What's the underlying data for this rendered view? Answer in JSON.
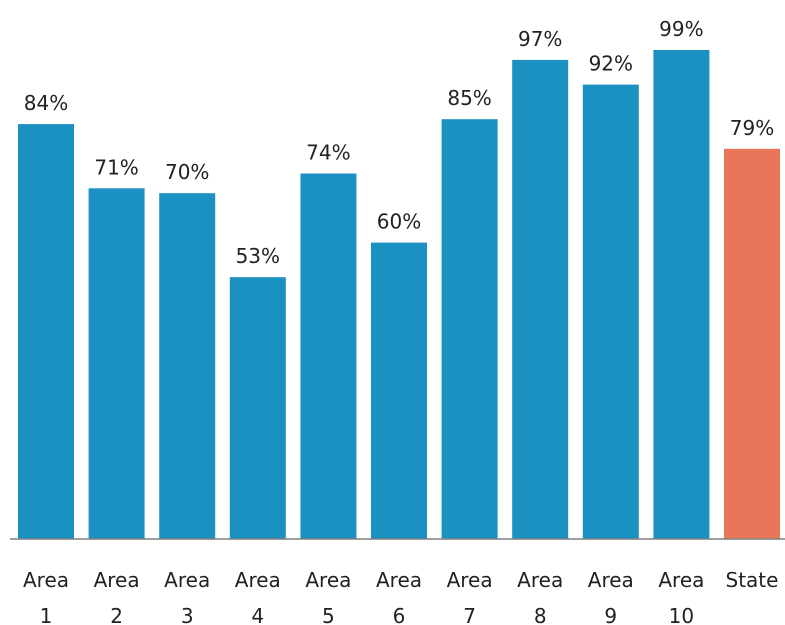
{
  "chart_data": {
    "type": "bar",
    "title": "",
    "xlabel": "",
    "ylabel": "",
    "ylim": [
      0,
      100
    ],
    "grid": false,
    "categories": [
      [
        "Area",
        "1"
      ],
      [
        "Area",
        "2"
      ],
      [
        "Area",
        "3"
      ],
      [
        "Area",
        "4"
      ],
      [
        "Area",
        "5"
      ],
      [
        "Area",
        "6"
      ],
      [
        "Area",
        "7"
      ],
      [
        "Area",
        "8"
      ],
      [
        "Area",
        "9"
      ],
      [
        "Area",
        "10"
      ],
      [
        "State"
      ]
    ],
    "values": [
      84,
      71,
      70,
      53,
      74,
      60,
      85,
      97,
      92,
      99,
      79
    ],
    "value_labels": [
      "84%",
      "71%",
      "70%",
      "53%",
      "74%",
      "60%",
      "85%",
      "97%",
      "92%",
      "99%",
      "79%"
    ],
    "colors": {
      "area": "#1a91c0",
      "state": "#e8775a",
      "axis": "#7f7f7f"
    },
    "bar_colors": [
      "area",
      "area",
      "area",
      "area",
      "area",
      "area",
      "area",
      "area",
      "area",
      "area",
      "state"
    ]
  }
}
